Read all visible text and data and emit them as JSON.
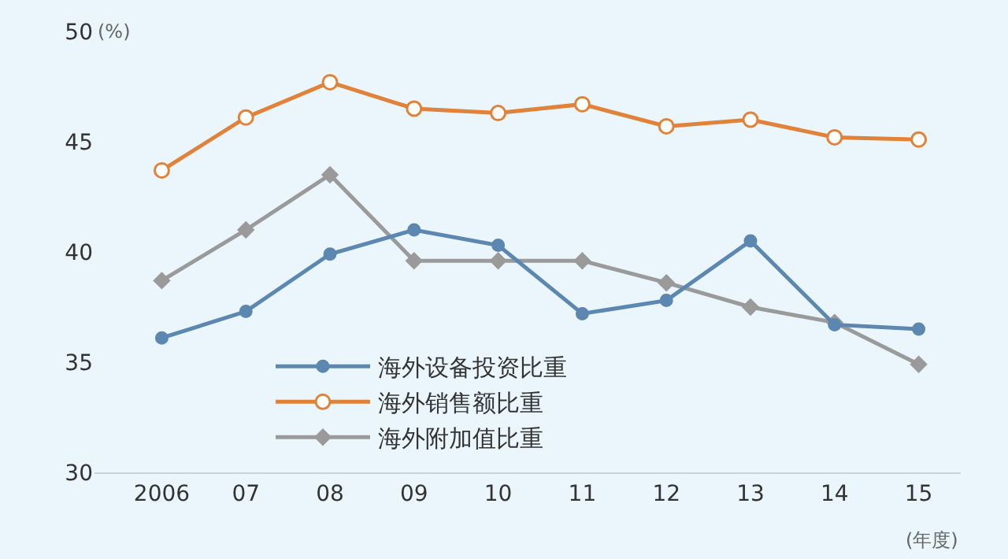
{
  "chart_data": {
    "type": "line",
    "categories": [
      "2006",
      "07",
      "08",
      "09",
      "10",
      "11",
      "12",
      "13",
      "14",
      "15"
    ],
    "series": [
      {
        "name": "海外设备投资比重",
        "color": "#5b87b0",
        "marker": "circle",
        "values": [
          36.1,
          37.3,
          39.9,
          41.0,
          40.3,
          37.2,
          37.8,
          40.5,
          36.7,
          36.5
        ]
      },
      {
        "name": "海外销售额比重",
        "color": "#e0823a",
        "marker": "circle",
        "values": [
          43.7,
          46.1,
          47.7,
          46.5,
          46.3,
          46.7,
          45.7,
          46.0,
          45.2,
          45.1
        ]
      },
      {
        "name": "海外附加值比重",
        "color": "#9a9a9a",
        "marker": "diamond",
        "values": [
          38.7,
          41.0,
          43.5,
          39.6,
          39.6,
          39.6,
          38.6,
          37.5,
          36.8,
          34.9
        ]
      }
    ],
    "ylim": [
      30,
      50
    ],
    "yticks": [
      30,
      35,
      40,
      45,
      50
    ],
    "annotations": [
      "(%)",
      "(年度)"
    ],
    "grid": false,
    "legend": "bottom left",
    "line_style": "solid"
  }
}
